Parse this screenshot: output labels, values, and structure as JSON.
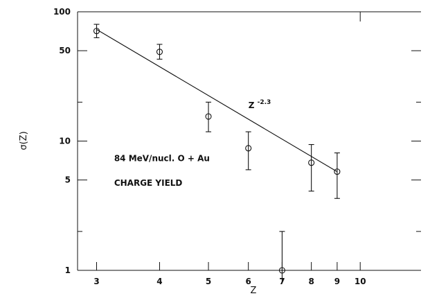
{
  "chart_data": {
    "type": "scatter",
    "title": "",
    "xlabel": "Z",
    "ylabel": "σ(Z)",
    "xscale": "log",
    "yscale": "log",
    "xlim": [
      2.75,
      13.2
    ],
    "ylim": [
      1,
      100
    ],
    "xticks": [
      3,
      4,
      5,
      6,
      7,
      8,
      9,
      10
    ],
    "yticks": [
      1,
      5,
      10,
      50,
      100
    ],
    "grid": false,
    "series": [
      {
        "name": "",
        "x": [
          3,
          4,
          5,
          6,
          7,
          8,
          9
        ],
        "y": [
          71,
          49,
          15.5,
          8.8,
          1.0,
          6.8,
          5.8
        ],
        "yerr_low": [
          63,
          43,
          11.8,
          6.0,
          0.8,
          4.1,
          3.6
        ],
        "yerr_high": [
          80,
          56,
          20,
          11.8,
          2.0,
          9.4,
          8.1
        ]
      }
    ],
    "fit_line": {
      "x": [
        3,
        9
      ],
      "y": [
        73,
        5.8
      ]
    },
    "annotations": [
      {
        "text": "Z",
        "superscript": "-2.3",
        "x": 6.0,
        "y": 18
      },
      {
        "text": "84 MeV/nucl. O + Au",
        "x": 3.25,
        "y": 7.0
      },
      {
        "text": "CHARGE YIELD",
        "x": 3.25,
        "y": 4.5
      }
    ]
  }
}
